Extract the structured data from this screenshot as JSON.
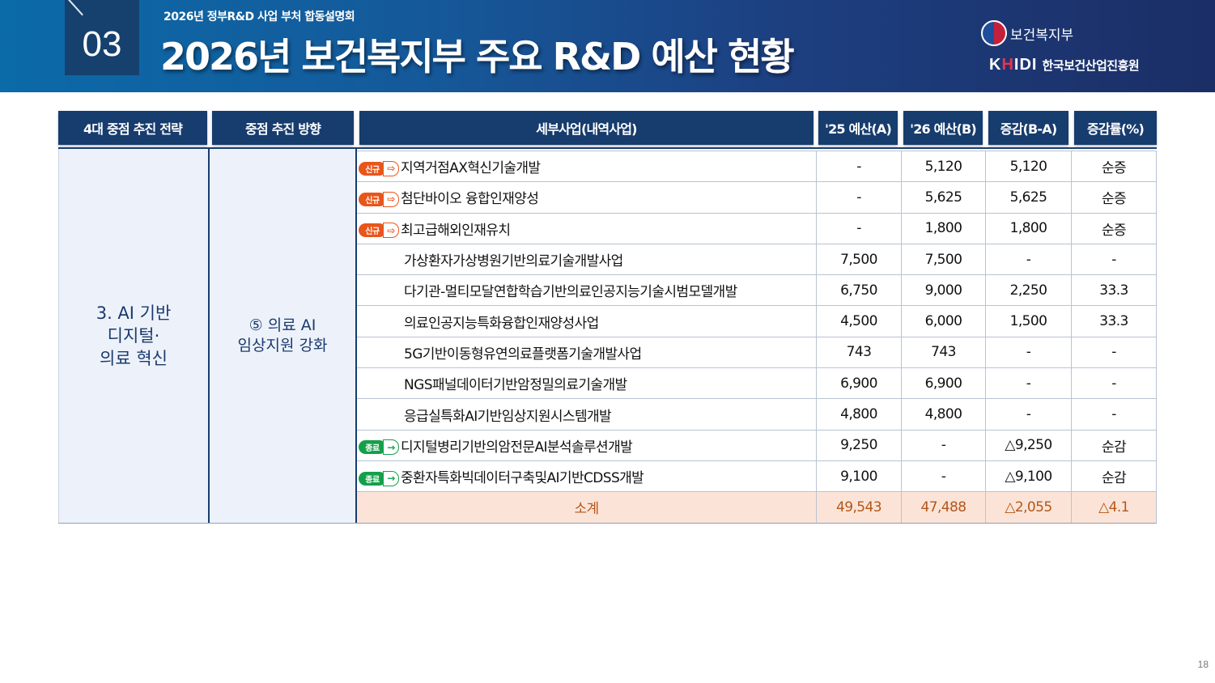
{
  "header": {
    "section_number": "03",
    "subtitle": "2026년 정부R&D 사업 부처 합동설명회",
    "title": "2026년 보건복지부 주요 R&D 예산 현황",
    "ministry_name": "보건복지부",
    "agency_mark": "KHIDI",
    "agency_name": "한국보건산업진흥원"
  },
  "columns": [
    "4대 중점 추진 전략",
    "중점 추진 방향",
    "세부사업(내역사업)",
    "'25 예산(A)",
    "'26 예산(B)",
    "증감(B-A)",
    "증감률(%)"
  ],
  "strategy": "3. AI 기반 디지털· 의료 혁신",
  "strategy_lines": [
    "3. AI 기반",
    "디지털·",
    "의료 혁신"
  ],
  "direction": "⑤ 의료 AI 임상지원 강화",
  "direction_lines": [
    "⑤ 의료 AI",
    "임상지원 강화"
  ],
  "badges": {
    "new": "신규",
    "end": "종료"
  },
  "rows": [
    {
      "badge": "new",
      "name": "지역거점AX혁신기술개발",
      "budget25": "-",
      "budget26": "5,120",
      "change": "5,120",
      "rate": "순증"
    },
    {
      "badge": "new",
      "name": "첨단바이오 융합인재양성",
      "budget25": "-",
      "budget26": "5,625",
      "change": "5,625",
      "rate": "순증"
    },
    {
      "badge": "new",
      "name": "최고급해외인재유치",
      "budget25": "-",
      "budget26": "1,800",
      "change": "1,800",
      "rate": "순증"
    },
    {
      "badge": "",
      "name": "가상환자가상병원기반의료기술개발사업",
      "budget25": "7,500",
      "budget26": "7,500",
      "change": "-",
      "rate": "-"
    },
    {
      "badge": "",
      "name": "다기관-멀티모달연합학습기반의료인공지능기술시범모델개발",
      "budget25": "6,750",
      "budget26": "9,000",
      "change": "2,250",
      "rate": "33.3"
    },
    {
      "badge": "",
      "name": "의료인공지능특화융합인재양성사업",
      "budget25": "4,500",
      "budget26": "6,000",
      "change": "1,500",
      "rate": "33.3"
    },
    {
      "badge": "",
      "name": "5G기반이동형유연의료플랫폼기술개발사업",
      "budget25": "743",
      "budget26": "743",
      "change": "-",
      "rate": "-"
    },
    {
      "badge": "",
      "name": "NGS패널데이터기반암정밀의료기술개발",
      "budget25": "6,900",
      "budget26": "6,900",
      "change": "-",
      "rate": "-"
    },
    {
      "badge": "",
      "name": "응급실특화AI기반임상지원시스템개발",
      "budget25": "4,800",
      "budget26": "4,800",
      "change": "-",
      "rate": "-"
    },
    {
      "badge": "end",
      "name": "디지털병리기반의암전문AI분석솔루션개발",
      "budget25": "9,250",
      "budget26": "-",
      "change": "△9,250",
      "rate": "순감"
    },
    {
      "badge": "end",
      "name": "중환자특화빅데이터구축및AI기반CDSS개발",
      "budget25": "9,100",
      "budget26": "-",
      "change": "△9,100",
      "rate": "순감"
    }
  ],
  "subtotal": {
    "label": "소계",
    "budget25": "49,543",
    "budget26": "47,488",
    "change": "△2,055",
    "rate": "△4.1"
  },
  "page_number": "18"
}
